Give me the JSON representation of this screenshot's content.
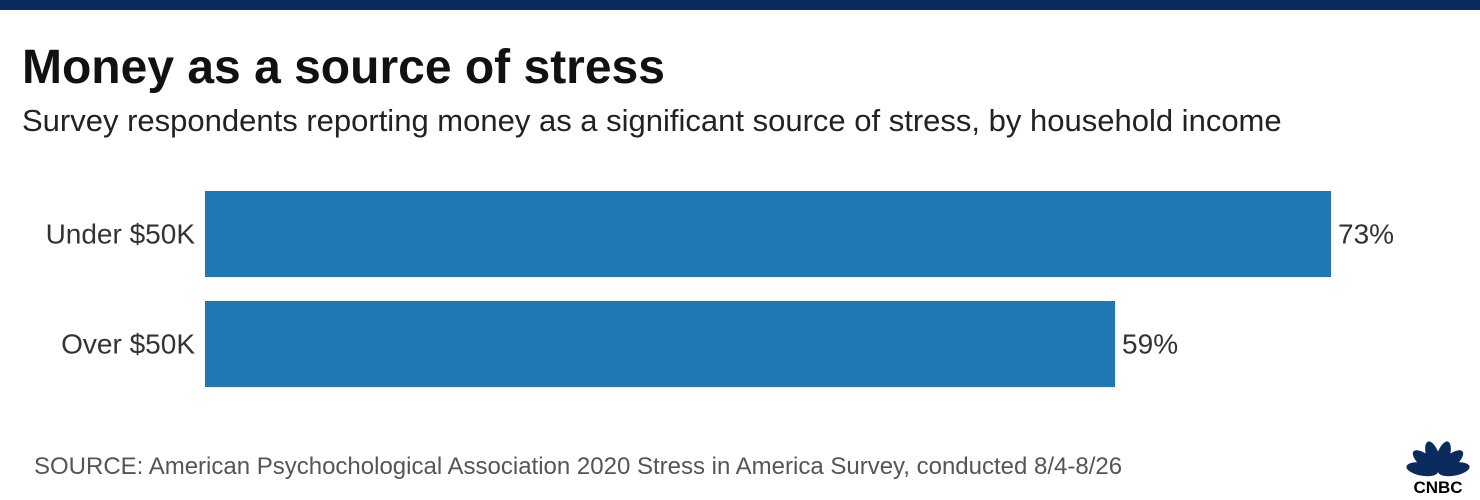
{
  "title": "Money as a source of stress",
  "subtitle": "Survey respondents reporting money as a significant source of stress, by household income",
  "source": "SOURCE: American Psychochological Association 2020 Stress in America Survey, conducted 8/4-8/26",
  "logo": {
    "name": "CNBC",
    "icon": "peacock-icon",
    "text": "CNBC"
  },
  "colors": {
    "bar": "#1f77b4",
    "top_bar": "#0b2b5e",
    "logo": "#0b2b5e"
  },
  "chart_data": {
    "type": "bar",
    "orientation": "horizontal",
    "categories": [
      "Under $50K",
      "Over $50K"
    ],
    "values": [
      73,
      59
    ],
    "value_labels": [
      "73%",
      "59%"
    ],
    "unit": "%",
    "xlim": [
      0,
      73
    ],
    "grid": false,
    "legend": "none"
  }
}
